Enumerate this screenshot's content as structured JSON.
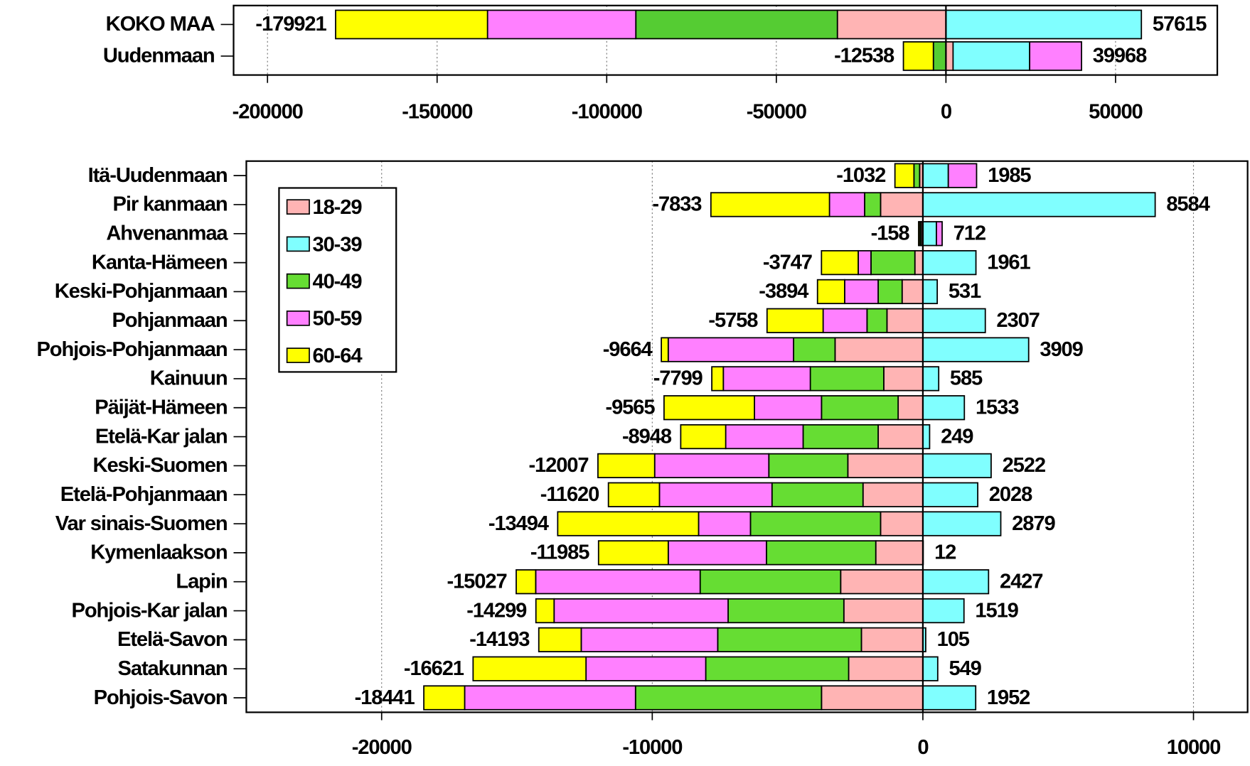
{
  "chart_data": [
    {
      "type": "bar",
      "orientation": "horizontal",
      "stacking": "diverging",
      "categories": [
        "KOKO MAA",
        "Uudenmaan"
      ],
      "series": [
        {
          "name": "18-29",
          "color": "#ffb4b4",
          "values": [
            -32000,
            2100
          ]
        },
        {
          "name": "30-39",
          "color": "#80ffff",
          "values": [
            57615,
            22580
          ]
        },
        {
          "name": "40-49",
          "color": "#55cc33",
          "values": [
            -59420,
            -3700
          ]
        },
        {
          "name": "50-59",
          "color": "#ff80ff",
          "values": [
            -43720,
            15288
          ]
        },
        {
          "name": "60-64",
          "color": "#ffff00",
          "values": [
            -44781,
            -8838
          ]
        }
      ],
      "negative_totals": [
        -179921,
        -12538
      ],
      "positive_totals": [
        57615,
        39968
      ],
      "xlim": [
        -210000,
        80000
      ],
      "xticks": [
        -200000,
        -150000,
        -100000,
        -50000,
        0,
        50000
      ],
      "grid": true
    },
    {
      "type": "bar",
      "orientation": "horizontal",
      "stacking": "diverging",
      "categories": [
        "Itä-Uudenmaan",
        "Pir kanmaan",
        "Ahvenanmaa",
        "Kanta-Hämeen",
        "Keski-Pohjanmaan",
        "Pohjanmaan",
        "Pohjois-Pohjanmaan",
        "Kainuun",
        "Päijät-Hämeen",
        "Etelä-Kar jalan",
        "Keski-Suomen",
        "Etelä-Pohjanmaan",
        "Var sinais-Suomen",
        "Kymenlaakson",
        "Lapin",
        "Pohjois-Kar jalan",
        "Etelä-Savon",
        "Satakunnan",
        "Pohjois-Savon"
      ],
      "series": [
        {
          "name": "18-29",
          "color": "#ffb4b4",
          "values": [
            -120,
            -1563,
            -60,
            -295,
            -767,
            -1327,
            -3245,
            -1445,
            -914,
            -1652,
            -2773,
            -2212,
            -1563,
            -1740,
            -3038,
            -2920,
            -2271,
            -2743,
            -3746
          ]
        },
        {
          "name": "30-39",
          "color": "#80ffff",
          "values": [
            940,
            8584,
            500,
            1961,
            531,
            2307,
            3909,
            585,
            1533,
            249,
            2522,
            2028,
            2879,
            12,
            2427,
            1519,
            105,
            549,
            1952
          ]
        },
        {
          "name": "40-49",
          "color": "#66dd33",
          "values": [
            -210,
            -590,
            -50,
            -1622,
            -885,
            -737,
            -1534,
            -2714,
            -2832,
            -2773,
            -2920,
            -3363,
            -4808,
            -4041,
            -5192,
            -4277,
            -5310,
            -5280,
            -6873
          ]
        },
        {
          "name": "50-59",
          "color": "#ff80ff",
          "values": [
            1045,
            -1298,
            212,
            -472,
            -1239,
            -1622,
            -4631,
            -3215,
            -2478,
            -2861,
            -4218,
            -4159,
            -1917,
            -3628,
            -6077,
            -6431,
            -5044,
            -4425,
            -6313
          ]
        },
        {
          "name": "60-64",
          "color": "#ffff00",
          "values": [
            -702,
            -4382,
            -48,
            -1358,
            -1003,
            -2072,
            -254,
            -425,
            -3341,
            -1662,
            -2096,
            -1886,
            -5206,
            -2576,
            -720,
            -671,
            -1568,
            -4173,
            -1509
          ]
        }
      ],
      "negative_totals": [
        -1032,
        -7833,
        -158,
        -3747,
        -3894,
        -5758,
        -9664,
        -7799,
        -9565,
        -8948,
        -12007,
        -11620,
        -13494,
        -11985,
        -15027,
        -14299,
        -14193,
        -16621,
        -18441
      ],
      "positive_totals": [
        1985,
        8584,
        712,
        1961,
        531,
        2307,
        3909,
        585,
        1533,
        249,
        2522,
        2028,
        2879,
        12,
        2427,
        1519,
        105,
        549,
        1952
      ],
      "xlim": [
        -25000,
        12000
      ],
      "xticks": [
        -20000,
        -10000,
        0,
        10000
      ],
      "grid": true,
      "legend": "upper left"
    }
  ]
}
